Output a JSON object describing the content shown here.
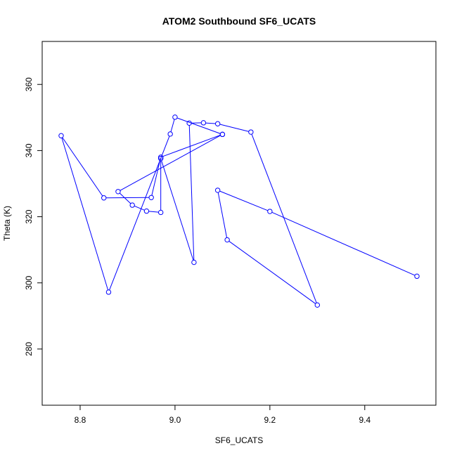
{
  "chart_data": {
    "type": "line",
    "title": "ATOM2 Southbound SF6_UCATS",
    "xlabel": "SF6_UCATS",
    "ylabel": "Theta (K)",
    "xlim": [
      8.72,
      9.55
    ],
    "ylim": [
      263,
      373
    ],
    "x_ticks": [
      8.8,
      9.0,
      9.2,
      9.4
    ],
    "x_tick_labels": [
      "8.8",
      "9.0",
      "9.2",
      "9.4"
    ],
    "y_ticks": [
      280,
      300,
      320,
      340,
      360
    ],
    "y_tick_labels": [
      "280",
      "300",
      "320",
      "340",
      "360"
    ],
    "grid": false,
    "legend": "none",
    "marker": "open-circle",
    "color": "#0000ff",
    "points": [
      {
        "x": 9.51,
        "y": 302.0
      },
      {
        "x": 9.2,
        "y": 321.6
      },
      {
        "x": 9.09,
        "y": 328.0
      },
      {
        "x": 9.11,
        "y": 313.0
      },
      {
        "x": 9.3,
        "y": 293.3
      },
      {
        "x": 9.16,
        "y": 345.6
      },
      {
        "x": 9.09,
        "y": 348.1
      },
      {
        "x": 9.06,
        "y": 348.4
      },
      {
        "x": 9.03,
        "y": 348.3
      },
      {
        "x": 9.04,
        "y": 306.2
      },
      {
        "x": 8.97,
        "y": 337.6
      },
      {
        "x": 8.97,
        "y": 321.3
      },
      {
        "x": 8.94,
        "y": 321.7
      },
      {
        "x": 8.91,
        "y": 323.5
      },
      {
        "x": 8.88,
        "y": 327.6
      },
      {
        "x": 9.1,
        "y": 344.9
      },
      {
        "x": 8.97,
        "y": 338.0
      },
      {
        "x": 8.95,
        "y": 325.8
      },
      {
        "x": 8.85,
        "y": 325.7
      },
      {
        "x": 8.76,
        "y": 344.5
      },
      {
        "x": 8.86,
        "y": 297.2
      },
      {
        "x": 8.99,
        "y": 345.0
      },
      {
        "x": 9.0,
        "y": 350.1
      },
      {
        "x": 9.1,
        "y": 344.9
      }
    ]
  }
}
